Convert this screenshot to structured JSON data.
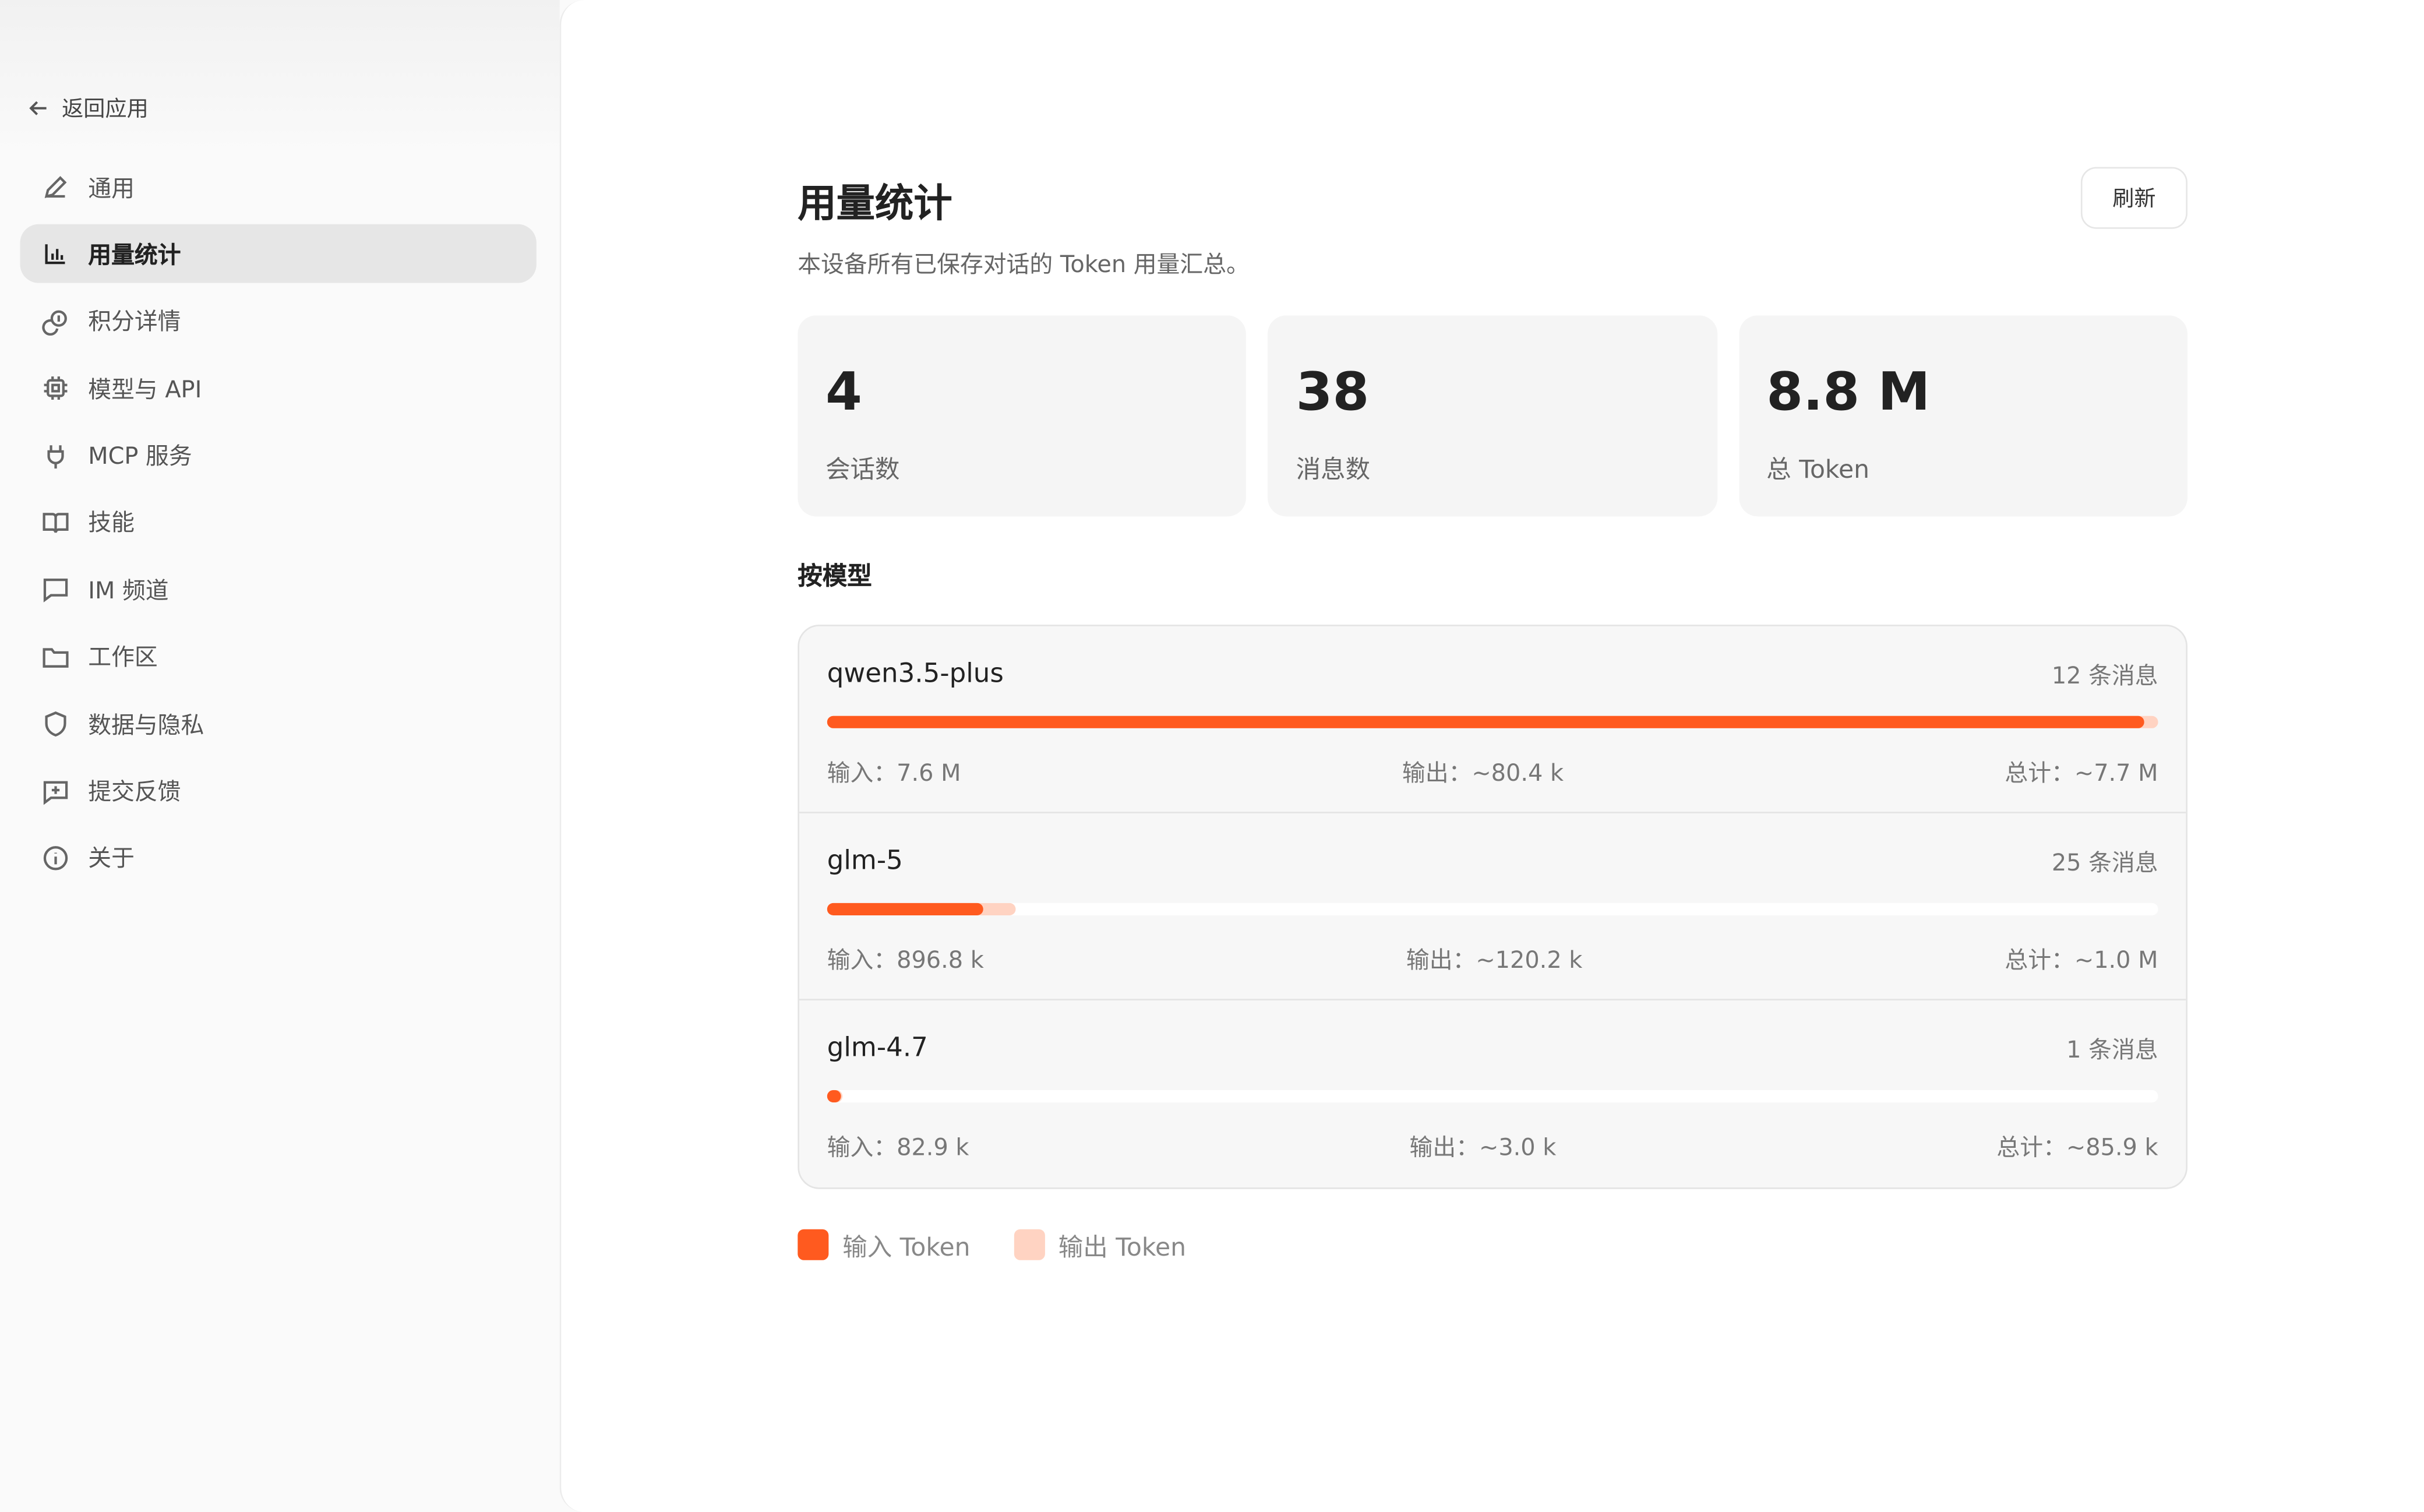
{
  "sidebar": {
    "back_label": "返回应用",
    "items": [
      {
        "label": "通用",
        "icon": "pencil-icon"
      },
      {
        "label": "用量统计",
        "icon": "bar-chart-icon",
        "active": true
      },
      {
        "label": "积分详情",
        "icon": "coins-icon"
      },
      {
        "label": "模型与 API",
        "icon": "chip-icon"
      },
      {
        "label": "MCP 服务",
        "icon": "plug-icon"
      },
      {
        "label": "技能",
        "icon": "book-icon"
      },
      {
        "label": "IM 频道",
        "icon": "message-icon"
      },
      {
        "label": "工作区",
        "icon": "folder-icon"
      },
      {
        "label": "数据与隐私",
        "icon": "shield-icon"
      },
      {
        "label": "提交反馈",
        "icon": "feedback-icon"
      },
      {
        "label": "关于",
        "icon": "info-icon"
      }
    ]
  },
  "header": {
    "title": "用量统计",
    "subtitle": "本设备所有已保存对话的 Token 用量汇总。",
    "refresh_label": "刷新"
  },
  "summary": [
    {
      "value": "4",
      "label": "会话数"
    },
    {
      "value": "38",
      "label": "消息数"
    },
    {
      "value": "8.8 M",
      "label": "总 Token"
    }
  ],
  "by_model": {
    "title": "按模型",
    "models": [
      {
        "name": "qwen3.5-plus",
        "messages": "12 条消息",
        "input": "输入：7.6 M",
        "output": "输出：~80.4 k",
        "total": "总计：~7.7 M",
        "bar": {
          "input": 0.99,
          "output": 0.01
        }
      },
      {
        "name": "glm-5",
        "messages": "25 条消息",
        "input": "输入：896.8 k",
        "output": "输出：~120.2 k",
        "total": "总计：~1.0 M",
        "bar": {
          "input": 0.117,
          "output": 0.015
        }
      },
      {
        "name": "glm-4.7",
        "messages": "1 条消息",
        "input": "输入：82.9 k",
        "output": "输出：~3.0 k",
        "total": "总计：~85.9 k",
        "bar": {
          "input": 0.011,
          "output": 0.0004
        }
      }
    ]
  },
  "legend": [
    {
      "label": "输入 Token",
      "color": "#ff5a1f"
    },
    {
      "label": "输出 Token",
      "color": "#ffd3c2"
    }
  ]
}
